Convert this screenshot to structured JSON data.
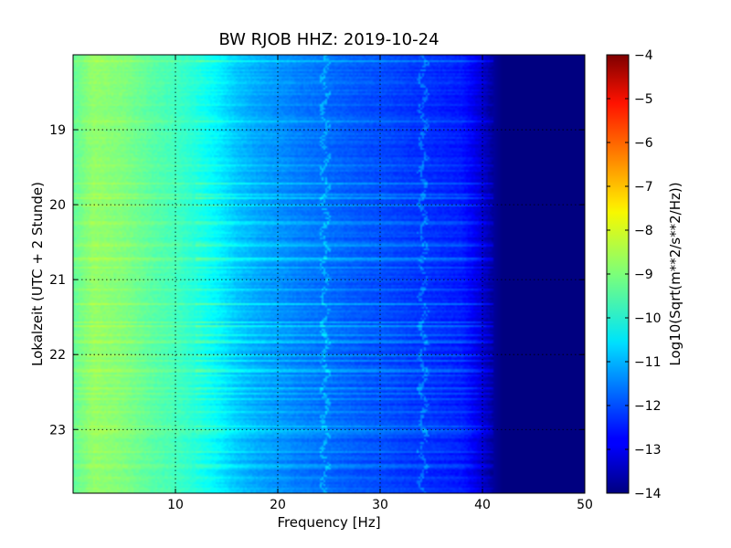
{
  "chart_data": {
    "type": "heatmap",
    "title": "BW RJOB HHZ: 2019-10-24",
    "xlabel": "Frequency [Hz]",
    "ylabel": "Lokalzeit (UTC + 2 Stunde)",
    "xlim": [
      0,
      50
    ],
    "ylim": [
      18.0,
      23.85
    ],
    "y_inverted": true,
    "grid": true,
    "x_ticks": [
      10,
      20,
      30,
      40,
      50
    ],
    "x_tick_labels": [
      "10",
      "20",
      "30",
      "40",
      "50"
    ],
    "y_ticks": [
      19,
      20,
      21,
      22,
      23
    ],
    "y_tick_labels": [
      "19",
      "20",
      "21",
      "22",
      "23"
    ],
    "colormap": "jet",
    "colorbar": {
      "label": "Log10(Sqrt(m**2/s**2/Hz))",
      "range": [
        -14,
        -4
      ],
      "ticks": [
        -4,
        -5,
        -6,
        -7,
        -8,
        -9,
        -10,
        -11,
        -12,
        -13,
        -14
      ],
      "tick_labels": [
        "−4",
        "−5",
        "−6",
        "−7",
        "−8",
        "−9",
        "−10",
        "−11",
        "−12",
        "−13",
        "−14"
      ]
    },
    "spectrum_profile": {
      "frequency_hz": [
        0,
        2,
        5,
        8,
        10,
        12,
        14,
        16,
        18,
        20,
        22,
        25,
        28,
        30,
        33,
        35,
        38,
        39,
        40,
        41,
        42,
        45,
        50
      ],
      "log10_amplitude": [
        -9.3,
        -8.8,
        -9.0,
        -9.4,
        -9.6,
        -9.9,
        -10.3,
        -10.8,
        -11.1,
        -11.3,
        -11.5,
        -11.7,
        -11.9,
        -12.0,
        -12.2,
        -12.3,
        -12.5,
        -12.8,
        -13.2,
        -13.7,
        -14.0,
        -14.0,
        -14.0
      ]
    },
    "features": [
      {
        "frequency_hz": 34.2,
        "description": "spectral line"
      },
      {
        "frequency_hz": 24.6,
        "description": "spectral line"
      }
    ]
  }
}
